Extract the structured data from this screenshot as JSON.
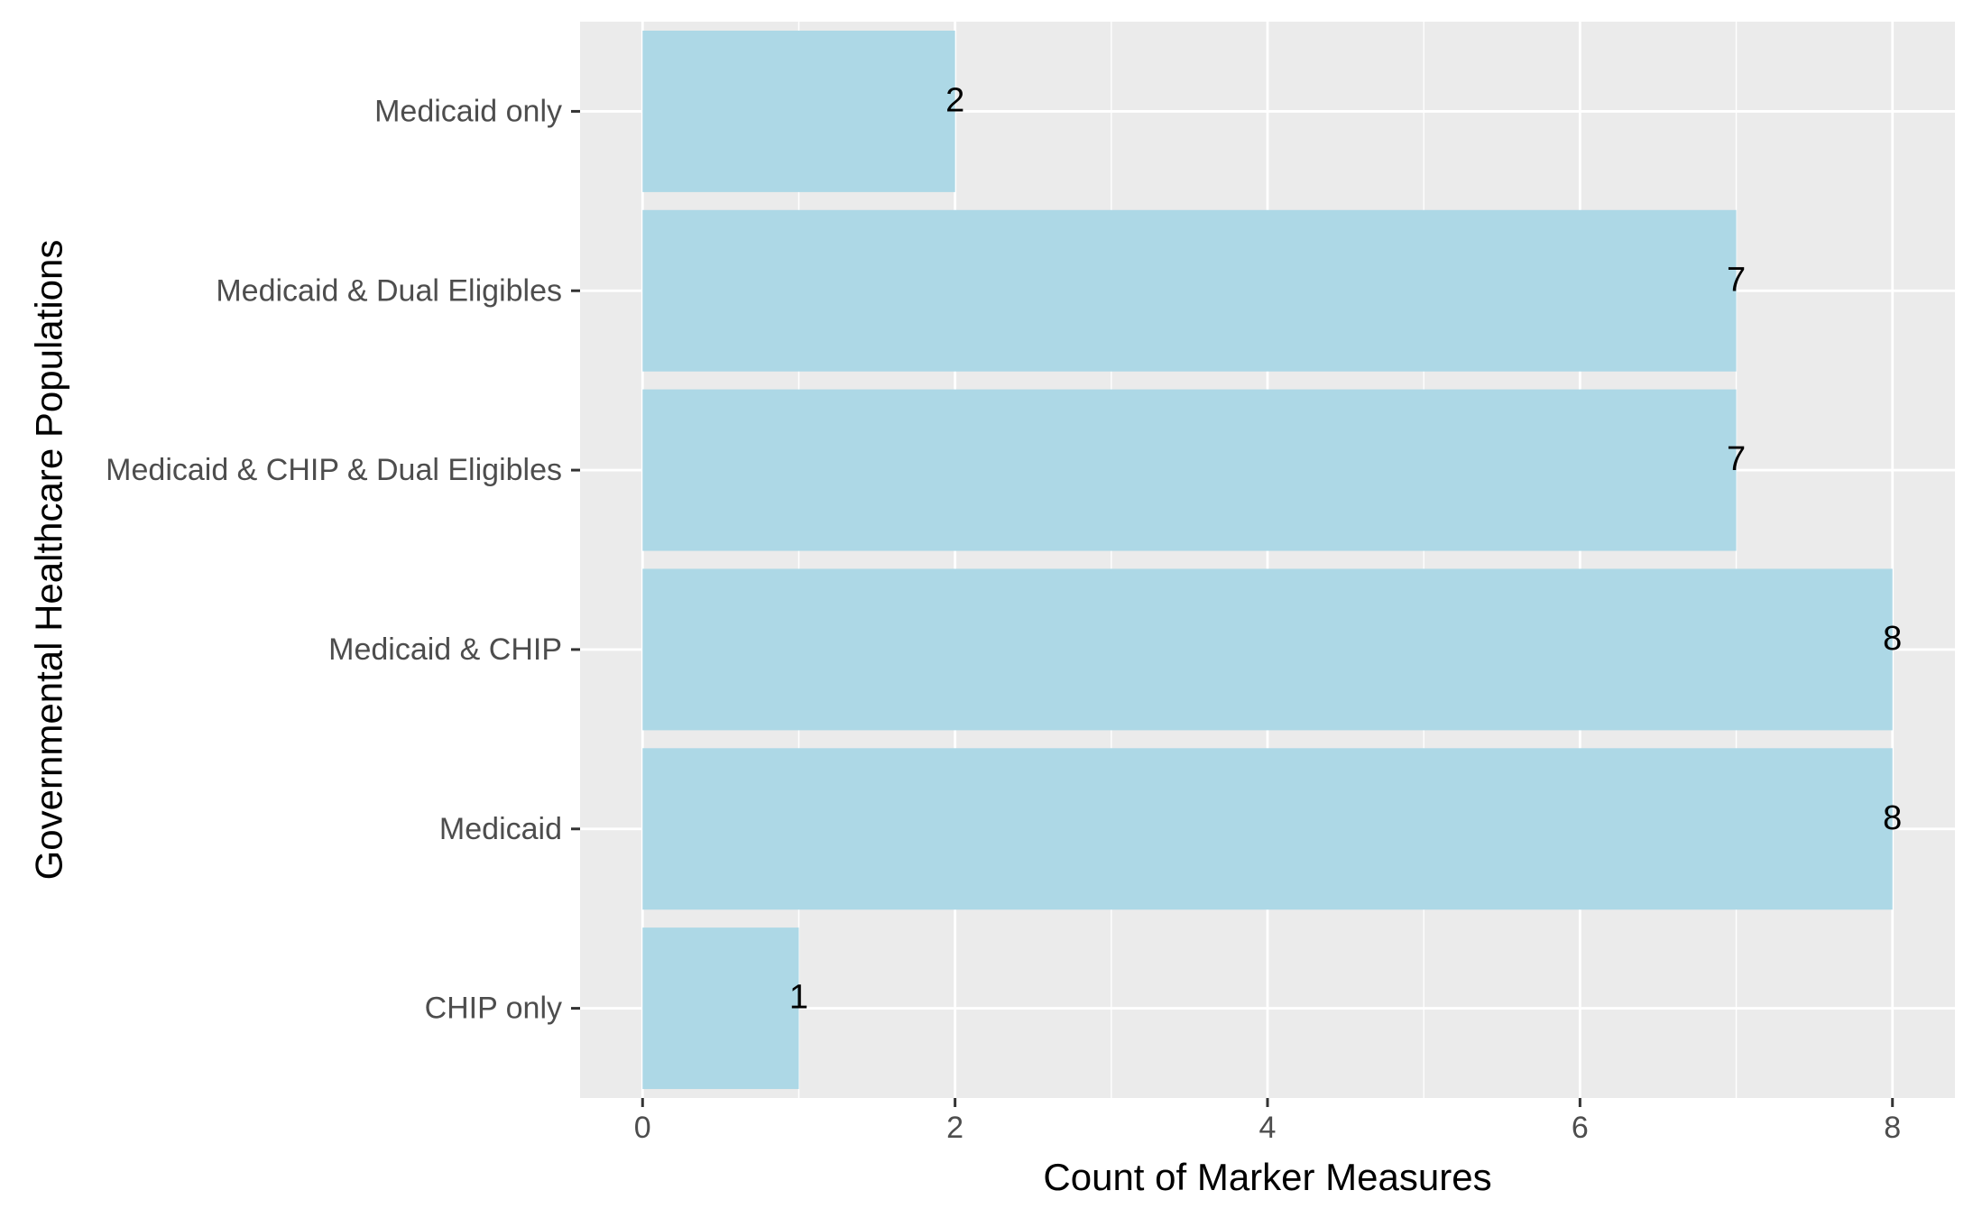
{
  "chart_data": {
    "type": "bar",
    "orientation": "horizontal",
    "categories": [
      "CHIP only",
      "Medicaid",
      "Medicaid & CHIP",
      "Medicaid & CHIP & Dual Eligibles",
      "Medicaid & Dual Eligibles",
      "Medicaid only"
    ],
    "values": [
      1,
      8,
      8,
      7,
      7,
      2
    ],
    "data_labels": [
      "1",
      "8",
      "8",
      "7",
      "7",
      "2"
    ],
    "title": "",
    "xlabel": "Count of Marker Measures",
    "ylabel": "Governmental Healthcare Populations",
    "xlim": [
      -0.4,
      8.4
    ],
    "x_ticks": [
      0,
      2,
      4,
      6,
      8
    ],
    "x_tick_labels": [
      "0",
      "2",
      "4",
      "6",
      "8"
    ],
    "grid": true,
    "legend": "none",
    "colors": {
      "bar": "#ADD8E6",
      "panel": "#EBEBEB",
      "grid": "#FFFFFF",
      "tick_text": "#4D4D4D",
      "tick_mark": "#333333",
      "label_text": "#000000"
    }
  }
}
